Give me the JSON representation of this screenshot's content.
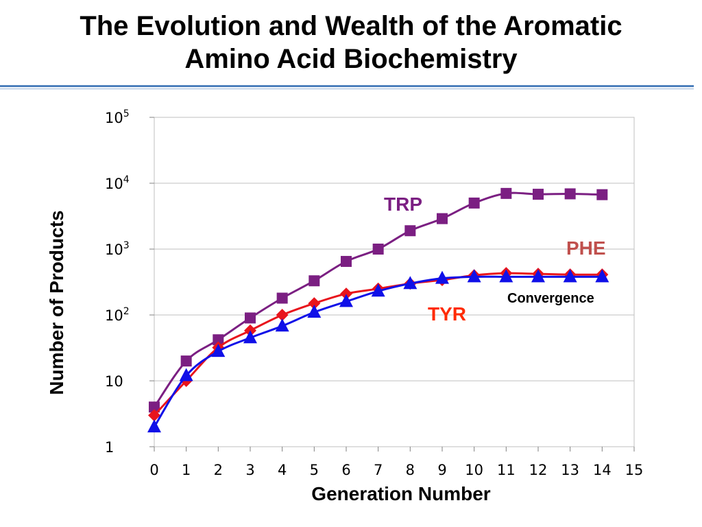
{
  "slide": {
    "title_line1": "The Evolution and Wealth of the Aromatic",
    "title_line2": "Amino Acid Biochemistry"
  },
  "chart_data": {
    "type": "line",
    "xlabel": "Generation Number",
    "ylabel": "Number of Products",
    "y_scale": "log",
    "xlim": [
      0,
      15
    ],
    "ylim": [
      1,
      100000
    ],
    "x_ticks": [
      0,
      1,
      2,
      3,
      4,
      5,
      6,
      7,
      8,
      9,
      10,
      11,
      12,
      13,
      14,
      15
    ],
    "y_ticks": [
      {
        "value": 1,
        "base": "1",
        "exp": ""
      },
      {
        "value": 10,
        "base": "10",
        "exp": ""
      },
      {
        "value": 100,
        "base": "10",
        "exp": "2"
      },
      {
        "value": 1000,
        "base": "10",
        "exp": "3"
      },
      {
        "value": 10000,
        "base": "10",
        "exp": "4"
      },
      {
        "value": 100000,
        "base": "10",
        "exp": "5"
      }
    ],
    "grid": {
      "horizontal": true,
      "vertical": false
    },
    "series": [
      {
        "name": "TRP",
        "color": "#7b1f82",
        "marker": "square",
        "x": [
          0,
          1,
          2,
          3,
          4,
          5,
          6,
          7,
          8,
          9,
          10,
          11,
          12,
          13,
          14
        ],
        "values": [
          4,
          20,
          42,
          90,
          180,
          330,
          650,
          1000,
          1900,
          2900,
          5000,
          7000,
          6800,
          6900,
          6700
        ]
      },
      {
        "name": "PHE",
        "color": "#e8141c",
        "marker": "diamond",
        "x": [
          0,
          1,
          2,
          3,
          4,
          5,
          6,
          7,
          8,
          9,
          10,
          11,
          12,
          13,
          14
        ],
        "values": [
          3,
          10,
          32,
          58,
          100,
          150,
          210,
          250,
          300,
          340,
          400,
          430,
          420,
          410,
          410
        ]
      },
      {
        "name": "TYR",
        "color": "#1010e8",
        "marker": "triangle",
        "x": [
          0,
          1,
          2,
          3,
          4,
          5,
          6,
          7,
          8,
          9,
          10,
          11,
          12,
          13,
          14
        ],
        "values": [
          2,
          12,
          28,
          45,
          68,
          110,
          160,
          230,
          300,
          360,
          380,
          380,
          380,
          380,
          380
        ]
      }
    ],
    "series_labels": [
      {
        "text": "TRP",
        "color": "#7b1f82"
      },
      {
        "text": "PHE",
        "color": "#c0504d"
      },
      {
        "text": "TYR",
        "color": "#ff2a00"
      }
    ],
    "annotations": [
      {
        "text": "Convergence"
      }
    ]
  }
}
